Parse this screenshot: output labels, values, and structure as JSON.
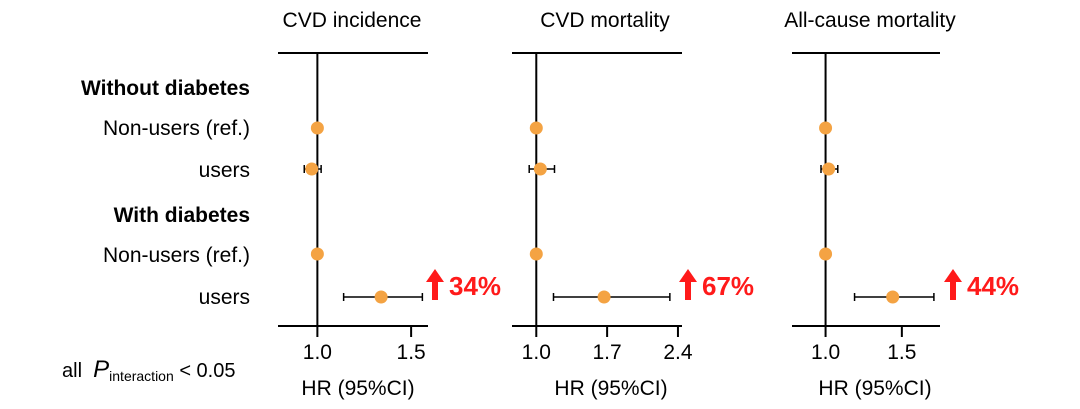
{
  "row_labels": {
    "group1": "Without diabetes",
    "row1": "Non-users (ref.)",
    "row2": "users",
    "group2": "With diabetes",
    "row3": "Non-users (ref.)",
    "row4": "users"
  },
  "footnote": {
    "prefix": "all",
    "p": "P",
    "sub": "interaction",
    "suffix": "< 0.05"
  },
  "colors": {
    "point": "#f4a343",
    "arrow": "#ff1a1a",
    "line": "#000000"
  },
  "chart_data": [
    {
      "type": "forest",
      "title": "CVD incidence",
      "xlabel": "HR (95%CI)",
      "xlim": [
        0.79,
        1.59
      ],
      "ticks": [
        1.0,
        1.5
      ],
      "tick_labels": [
        "1.0",
        "1.5"
      ],
      "reference": 1.0,
      "rows": [
        {
          "label": "Non-users (ref.)",
          "group": "Without diabetes",
          "hr": 1.0,
          "lo": null,
          "hi": null
        },
        {
          "label": "users",
          "group": "Without diabetes",
          "hr": 0.97,
          "lo": 0.93,
          "hi": 1.02
        },
        {
          "label": "Non-users (ref.)",
          "group": "With diabetes",
          "hr": 1.0,
          "lo": null,
          "hi": null
        },
        {
          "label": "users",
          "group": "With diabetes",
          "hr": 1.34,
          "lo": 1.14,
          "hi": 1.56
        }
      ],
      "annotation": "34%"
    },
    {
      "type": "forest",
      "title": "CVD mortality",
      "xlabel": "HR (95%CI)",
      "xlim": [
        0.76,
        2.44
      ],
      "ticks": [
        1.0,
        1.7,
        2.4
      ],
      "tick_labels": [
        "1.0",
        "1.7",
        "2.4"
      ],
      "reference": 1.0,
      "rows": [
        {
          "label": "Non-users (ref.)",
          "group": "Without diabetes",
          "hr": 1.0,
          "lo": null,
          "hi": null
        },
        {
          "label": "users",
          "group": "Without diabetes",
          "hr": 1.04,
          "lo": 0.93,
          "hi": 1.18
        },
        {
          "label": "Non-users (ref.)",
          "group": "With diabetes",
          "hr": 1.0,
          "lo": null,
          "hi": null
        },
        {
          "label": "users",
          "group": "With diabetes",
          "hr": 1.67,
          "lo": 1.17,
          "hi": 2.32
        }
      ],
      "annotation": "67%"
    },
    {
      "type": "forest",
      "title": "All-cause mortality",
      "xlabel": "HR (95%CI)",
      "xlim": [
        0.78,
        1.75
      ],
      "ticks": [
        1.0,
        1.5
      ],
      "tick_labels": [
        "1.0",
        "1.5"
      ],
      "reference": 1.0,
      "rows": [
        {
          "label": "Non-users (ref.)",
          "group": "Without diabetes",
          "hr": 1.0,
          "lo": null,
          "hi": null
        },
        {
          "label": "users",
          "group": "Without diabetes",
          "hr": 1.02,
          "lo": 0.97,
          "hi": 1.08
        },
        {
          "label": "Non-users (ref.)",
          "group": "With diabetes",
          "hr": 1.0,
          "lo": null,
          "hi": null
        },
        {
          "label": "users",
          "group": "With diabetes",
          "hr": 1.44,
          "lo": 1.19,
          "hi": 1.71
        }
      ],
      "annotation": "44%"
    }
  ]
}
